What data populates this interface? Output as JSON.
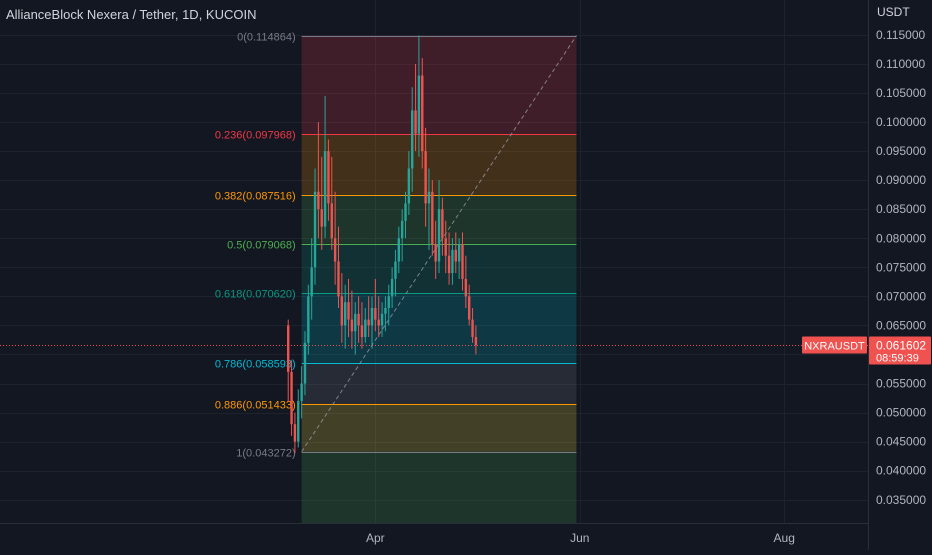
{
  "header": {
    "symbol_title": "AllianceBlock Nexera / Tether, 1D, KUCOIN",
    "currency": "USDT"
  },
  "price_tag": {
    "symbol": "NXRAUSDT",
    "price": "0.061602",
    "countdown": "08:59:39",
    "value": 0.061602,
    "color": "#f0524f"
  },
  "colors": {
    "background": "#131722",
    "grid": "#1e222d",
    "axis_text": "#b2b5be",
    "up": "#26a69a",
    "down": "#ef5350"
  },
  "chart_data": {
    "type": "candlestick",
    "title": "AllianceBlock Nexera / Tether, 1D, KUCOIN",
    "y_axis": {
      "ticks": [
        "0.115000",
        "0.110000",
        "0.105000",
        "0.100000",
        "0.095000",
        "0.090000",
        "0.085000",
        "0.080000",
        "0.075000",
        "0.070000",
        "0.065000",
        "0.060000",
        "0.055000",
        "0.050000",
        "0.045000",
        "0.040000",
        "0.035000"
      ],
      "tick_values": [
        0.115,
        0.11,
        0.105,
        0.1,
        0.095,
        0.09,
        0.085,
        0.08,
        0.075,
        0.07,
        0.065,
        0.06,
        0.055,
        0.05,
        0.045,
        0.04,
        0.035
      ],
      "range": [
        0.031,
        0.121
      ],
      "position": "right"
    },
    "x_axis": {
      "ticks": [
        "Apr",
        "Jun",
        "Aug"
      ],
      "tick_dates": [
        "2024-04-01",
        "2024-06-01",
        "2024-08-01"
      ],
      "range": [
        "2023-12-11",
        "2024-08-26"
      ]
    },
    "fibonacci": {
      "start_date": "2024-03-10",
      "end_date": "2024-05-31",
      "levels": [
        {
          "ratio": 0,
          "label": "0(0.114864)",
          "value": 0.114864,
          "color": "#787b86"
        },
        {
          "ratio": 0.236,
          "label": "0.236(0.097968)",
          "value": 0.097968,
          "color": "#f23645"
        },
        {
          "ratio": 0.382,
          "label": "0.382(0.087516)",
          "value": 0.087516,
          "color": "#ff9800"
        },
        {
          "ratio": 0.5,
          "label": "0.5(0.079068)",
          "value": 0.079068,
          "color": "#4caf50"
        },
        {
          "ratio": 0.618,
          "label": "0.618(0.070620)",
          "value": 0.07062,
          "color": "#089981"
        },
        {
          "ratio": 0.786,
          "label": "0.786(0.058593)",
          "value": 0.058593,
          "color": "#00bcd4"
        },
        {
          "ratio": 0.886,
          "label": "0.886(0.051433)",
          "value": 0.051433,
          "color": "#ff9800"
        },
        {
          "ratio": 1,
          "label": "1(0.043272)",
          "value": 0.043272,
          "color": "#787b86"
        }
      ],
      "zones": [
        {
          "from": 0.114864,
          "to": 0.097968,
          "color": "#f23645"
        },
        {
          "from": 0.097968,
          "to": 0.087516,
          "color": "#ff9800"
        },
        {
          "from": 0.087516,
          "to": 0.079068,
          "color": "#4caf50"
        },
        {
          "from": 0.079068,
          "to": 0.07062,
          "color": "#089981"
        },
        {
          "from": 0.07062,
          "to": 0.058593,
          "color": "#00bcd4"
        },
        {
          "from": 0.058593,
          "to": 0.051433,
          "color": "#787b86"
        },
        {
          "from": 0.051433,
          "to": 0.043272,
          "color": "#ffeb3b"
        },
        {
          "from": 0.043272,
          "to": 0.031,
          "color": "#4caf50"
        }
      ],
      "trend_line": {
        "from_date": "2024-03-10",
        "from_value": 0.043272,
        "to_date": "2024-05-31",
        "to_value": 0.114864
      }
    },
    "candles": [
      [
        "2024-03-06",
        0.065,
        0.066,
        0.052,
        0.057
      ],
      [
        "2024-03-07",
        0.057,
        0.059,
        0.046,
        0.048
      ],
      [
        "2024-03-08",
        0.048,
        0.05,
        0.043,
        0.045
      ],
      [
        "2024-03-09",
        0.045,
        0.054,
        0.044,
        0.052
      ],
      [
        "2024-03-10",
        0.052,
        0.058,
        0.049,
        0.055
      ],
      [
        "2024-03-11",
        0.055,
        0.064,
        0.053,
        0.062
      ],
      [
        "2024-03-12",
        0.062,
        0.072,
        0.06,
        0.07
      ],
      [
        "2024-03-13",
        0.07,
        0.08,
        0.066,
        0.075
      ],
      [
        "2024-03-14",
        0.075,
        0.092,
        0.072,
        0.088
      ],
      [
        "2024-03-15",
        0.088,
        0.1,
        0.08,
        0.085
      ],
      [
        "2024-03-16",
        0.085,
        0.094,
        0.078,
        0.082
      ],
      [
        "2024-03-17",
        0.082,
        0.1045,
        0.08,
        0.095
      ],
      [
        "2024-03-18",
        0.095,
        0.097,
        0.083,
        0.086
      ],
      [
        "2024-03-19",
        0.086,
        0.094,
        0.078,
        0.08
      ],
      [
        "2024-03-20",
        0.08,
        0.088,
        0.072,
        0.076
      ],
      [
        "2024-03-21",
        0.076,
        0.082,
        0.068,
        0.07
      ],
      [
        "2024-03-22",
        0.07,
        0.074,
        0.062,
        0.065
      ],
      [
        "2024-03-23",
        0.065,
        0.072,
        0.061,
        0.069
      ],
      [
        "2024-03-24",
        0.069,
        0.073,
        0.063,
        0.066
      ],
      [
        "2024-03-25",
        0.066,
        0.071,
        0.061,
        0.064
      ],
      [
        "2024-03-26",
        0.064,
        0.069,
        0.06,
        0.067
      ],
      [
        "2024-03-27",
        0.067,
        0.07,
        0.062,
        0.065
      ],
      [
        "2024-03-28",
        0.065,
        0.069,
        0.061,
        0.063
      ],
      [
        "2024-03-29",
        0.063,
        0.068,
        0.062,
        0.066
      ],
      [
        "2024-03-30",
        0.066,
        0.07,
        0.063,
        0.065
      ],
      [
        "2024-03-31",
        0.065,
        0.07,
        0.061,
        0.068
      ],
      [
        "2024-04-01",
        0.068,
        0.073,
        0.064,
        0.066
      ],
      [
        "2024-04-02",
        0.066,
        0.07,
        0.063,
        0.065
      ],
      [
        "2024-04-03",
        0.065,
        0.069,
        0.063,
        0.067
      ],
      [
        "2024-04-04",
        0.067,
        0.07,
        0.064,
        0.068
      ],
      [
        "2024-04-05",
        0.068,
        0.072,
        0.065,
        0.07
      ],
      [
        "2024-04-06",
        0.07,
        0.075,
        0.068,
        0.073
      ],
      [
        "2024-04-07",
        0.073,
        0.078,
        0.07,
        0.076
      ],
      [
        "2024-04-08",
        0.076,
        0.082,
        0.074,
        0.08
      ],
      [
        "2024-04-09",
        0.08,
        0.085,
        0.076,
        0.083
      ],
      [
        "2024-04-10",
        0.083,
        0.088,
        0.08,
        0.086
      ],
      [
        "2024-04-11",
        0.086,
        0.095,
        0.084,
        0.092
      ],
      [
        "2024-04-12",
        0.092,
        0.106,
        0.088,
        0.102
      ],
      [
        "2024-04-13",
        0.102,
        0.11,
        0.095,
        0.098
      ],
      [
        "2024-04-14",
        0.098,
        0.1149,
        0.094,
        0.108
      ],
      [
        "2024-04-15",
        0.108,
        0.111,
        0.092,
        0.095
      ],
      [
        "2024-04-16",
        0.095,
        0.099,
        0.082,
        0.086
      ],
      [
        "2024-04-17",
        0.086,
        0.092,
        0.078,
        0.088
      ],
      [
        "2024-04-18",
        0.088,
        0.09,
        0.077,
        0.079
      ],
      [
        "2024-04-19",
        0.079,
        0.083,
        0.073,
        0.076
      ],
      [
        "2024-04-20",
        0.076,
        0.09,
        0.074,
        0.085
      ],
      [
        "2024-04-21",
        0.085,
        0.087,
        0.077,
        0.08
      ],
      [
        "2024-04-22",
        0.08,
        0.083,
        0.074,
        0.077
      ],
      [
        "2024-04-23",
        0.077,
        0.081,
        0.072,
        0.074
      ],
      [
        "2024-04-24",
        0.074,
        0.08,
        0.072,
        0.078
      ],
      [
        "2024-04-25",
        0.078,
        0.081,
        0.074,
        0.076
      ],
      [
        "2024-04-26",
        0.076,
        0.08,
        0.073,
        0.079
      ],
      [
        "2024-04-27",
        0.079,
        0.081,
        0.071,
        0.073
      ],
      [
        "2024-04-28",
        0.073,
        0.077,
        0.068,
        0.07
      ],
      [
        "2024-04-29",
        0.07,
        0.072,
        0.065,
        0.066
      ],
      [
        "2024-04-30",
        0.066,
        0.068,
        0.062,
        0.063
      ],
      [
        "2024-05-01",
        0.063,
        0.065,
        0.06,
        0.0616
      ]
    ]
  }
}
